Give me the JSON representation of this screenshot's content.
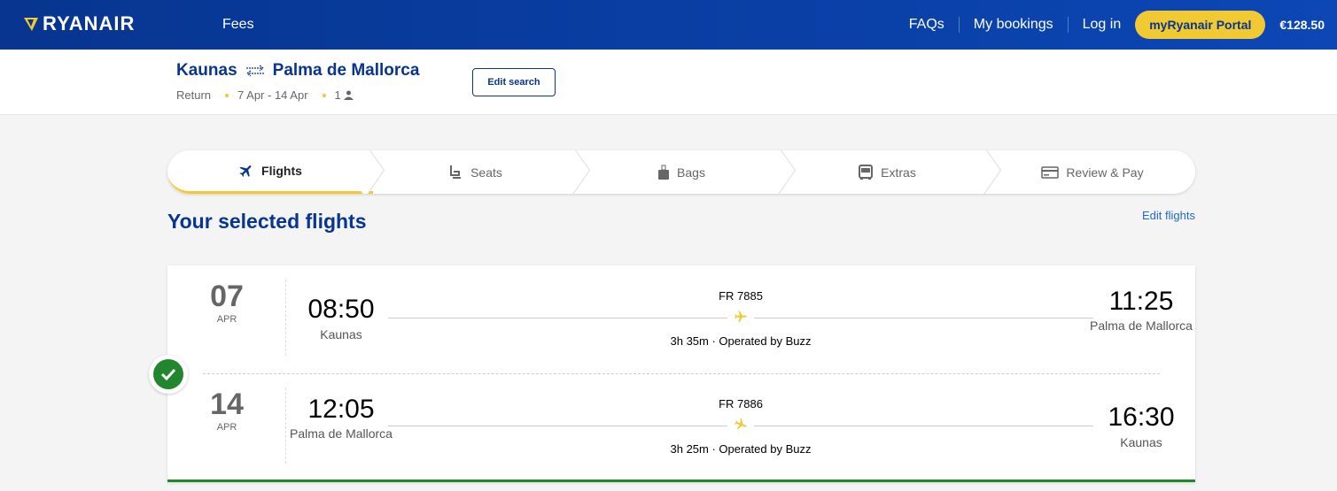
{
  "header": {
    "brand": "RYANAIR",
    "fees": "Fees",
    "faqs": "FAQs",
    "my_bookings": "My bookings",
    "log_in": "Log in",
    "portal": "myRyanair Portal",
    "price": "€128.50"
  },
  "search": {
    "origin": "Kaunas",
    "destination": "Palma de Mallorca",
    "trip_type": "Return",
    "dates": "7 Apr - 14 Apr",
    "passengers": "1",
    "edit": "Edit search"
  },
  "steps": [
    {
      "label": "Flights",
      "icon": "plane-icon"
    },
    {
      "label": "Seats",
      "icon": "seat-icon"
    },
    {
      "label": "Bags",
      "icon": "bag-icon"
    },
    {
      "label": "Extras",
      "icon": "bus-icon"
    },
    {
      "label": "Review & Pay",
      "icon": "card-icon"
    }
  ],
  "main": {
    "title": "Your selected flights",
    "edit_flights": "Edit flights"
  },
  "flights": [
    {
      "day": "07",
      "month": "APR",
      "dep_time": "08:50",
      "dep_city": "Kaunas",
      "arr_time": "11:25",
      "arr_city": "Palma de Mallorca",
      "flight_no": "FR 7885",
      "duration": "3h 35m · Operated by Buzz"
    },
    {
      "day": "14",
      "month": "APR",
      "dep_time": "12:05",
      "dep_city": "Palma de Mallorca",
      "arr_time": "16:30",
      "arr_city": "Kaunas",
      "flight_no": "FR 7886",
      "duration": "3h 25m · Operated by Buzz"
    }
  ],
  "colors": {
    "brand_blue": "#073590",
    "yellow": "#f1c933",
    "success": "#21862d",
    "link": "#1f6ac8"
  }
}
